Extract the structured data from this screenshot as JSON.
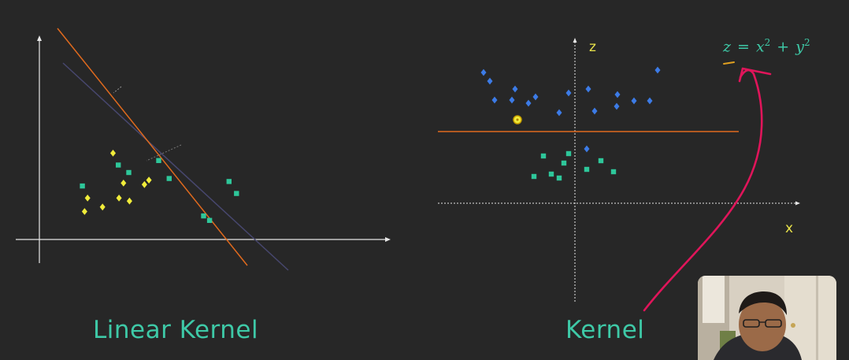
{
  "slide": {
    "left_panel": {
      "caption": "Linear Kernel",
      "green_points": [
        [
          -16,
          11
        ],
        [
          8,
          25
        ],
        [
          35,
          28
        ],
        [
          15,
          20
        ],
        [
          42,
          16
        ],
        [
          87,
          6
        ],
        [
          82,
          14
        ],
        [
          69,
          -12
        ],
        [
          65,
          -9
        ]
      ],
      "yellow_points": [
        [
          115,
          54
        ],
        [
          122,
          34
        ],
        [
          136,
          33
        ],
        [
          139,
          36
        ],
        [
          108,
          18
        ],
        [
          126,
          22
        ],
        [
          119,
          24
        ],
        [
          98,
          24
        ],
        [
          96,
          15
        ]
      ]
    },
    "right_panel": {
      "axis_z_label": "z",
      "axis_x_label": "x",
      "caption": "Kernel",
      "formula": {
        "lhs": "z",
        "eq": "=",
        "t1": "x",
        "t1_exp": "2",
        "plus": "+",
        "t2": "y",
        "t2_exp": "2"
      },
      "blue_points": [
        [
          -116,
          166
        ],
        [
          -108,
          155
        ],
        [
          -76,
          145
        ],
        [
          -102,
          131
        ],
        [
          -80,
          131
        ],
        [
          -59,
          127
        ],
        [
          -50,
          135
        ],
        [
          -20,
          115
        ],
        [
          -8,
          140
        ],
        [
          17,
          145
        ],
        [
          25,
          117
        ],
        [
          54,
          138
        ],
        [
          53,
          123
        ],
        [
          75,
          130
        ],
        [
          95,
          130
        ],
        [
          105,
          169
        ],
        [
          15,
          69
        ]
      ],
      "green_points": [
        [
          -40,
          60
        ],
        [
          -52,
          34
        ],
        [
          -30,
          37
        ],
        [
          -20,
          32
        ],
        [
          -14,
          51
        ],
        [
          -8,
          63
        ],
        [
          15,
          43
        ],
        [
          33,
          54
        ],
        [
          49,
          40
        ]
      ],
      "highlight_point": [
        -72,
        106
      ]
    },
    "colors": {
      "background": "#272727",
      "axis": "#e6e6e6",
      "orange_line": "#e06a1e",
      "purple_line": "#47476e",
      "green": "#2ec79a",
      "yellow": "#f0ec3a",
      "blue": "#3c7be6",
      "teal_text": "#3ec9a7",
      "annotation": "#e0155a"
    }
  },
  "presenter": {
    "webcam": "presenter-webcam"
  }
}
